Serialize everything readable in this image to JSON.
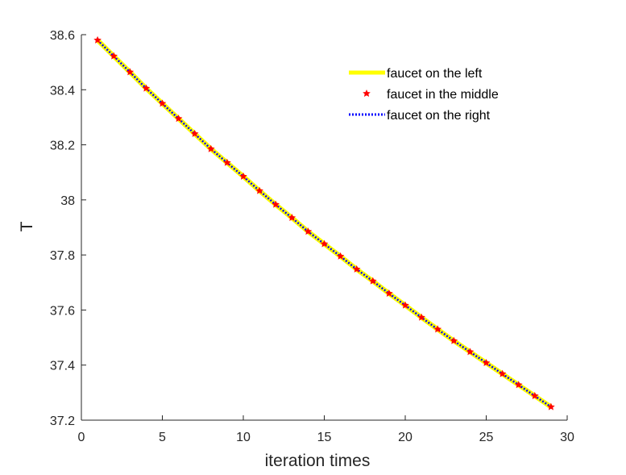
{
  "chart_data": {
    "type": "line",
    "title": "",
    "xlabel": "iteration times",
    "ylabel": "T",
    "xlim": [
      0,
      30
    ],
    "ylim": [
      37.2,
      38.6
    ],
    "xticks": [
      "0",
      "5",
      "10",
      "15",
      "20",
      "25",
      "30"
    ],
    "yticks": [
      "37.2",
      "37.4",
      "37.6",
      "37.8",
      "38",
      "38.2",
      "38.4",
      "38.6"
    ],
    "grid": false,
    "legend_position": "top-right",
    "x": [
      1,
      2,
      3,
      4,
      5,
      6,
      7,
      8,
      9,
      10,
      11,
      12,
      13,
      14,
      15,
      16,
      17,
      18,
      19,
      20,
      21,
      22,
      23,
      24,
      25,
      26,
      27,
      28,
      29
    ],
    "series": [
      {
        "name": "faucet on the left",
        "style": "solid-thick",
        "color": "#ffff00",
        "values": [
          38.58,
          38.522,
          38.464,
          38.405,
          38.35,
          38.295,
          38.24,
          38.185,
          38.135,
          38.085,
          38.033,
          37.983,
          37.935,
          37.885,
          37.84,
          37.795,
          37.748,
          37.705,
          37.66,
          37.617,
          37.573,
          37.53,
          37.488,
          37.448,
          37.408,
          37.368,
          37.328,
          37.288,
          37.248
        ]
      },
      {
        "name": "faucet in the middle",
        "style": "markers",
        "color": "#ff0000",
        "values": [
          38.58,
          38.522,
          38.464,
          38.405,
          38.35,
          38.295,
          38.24,
          38.185,
          38.135,
          38.085,
          38.033,
          37.983,
          37.935,
          37.885,
          37.84,
          37.795,
          37.748,
          37.705,
          37.66,
          37.617,
          37.573,
          37.53,
          37.488,
          37.448,
          37.408,
          37.368,
          37.328,
          37.288,
          37.248
        ]
      },
      {
        "name": "faucet on the right",
        "style": "dotted",
        "color": "#0000ff",
        "values": [
          38.58,
          38.522,
          38.464,
          38.405,
          38.35,
          38.295,
          38.24,
          38.185,
          38.135,
          38.085,
          38.033,
          37.983,
          37.935,
          37.885,
          37.84,
          37.795,
          37.748,
          37.705,
          37.66,
          37.617,
          37.573,
          37.53,
          37.488,
          37.448,
          37.408,
          37.368,
          37.328,
          37.288,
          37.248
        ]
      }
    ]
  }
}
